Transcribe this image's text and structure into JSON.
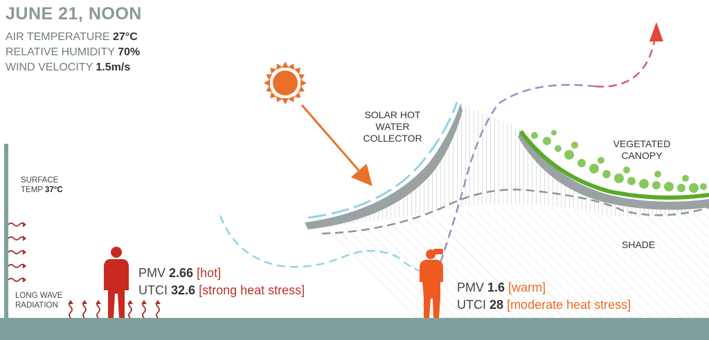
{
  "title": "JUNE 21, NOON",
  "conditions": {
    "air_temp_label": "AIR TEMPERATURE",
    "air_temp_value": "27°C",
    "humidity_label": "RELATIVE HUMIDITY",
    "humidity_value": "70%",
    "wind_label": "WIND VELOCITY",
    "wind_value": "1.5m/s"
  },
  "labels": {
    "solar_collector": [
      "SOLAR HOT",
      "WATER",
      "COLLECTOR"
    ],
    "canopy": [
      "VEGETATED",
      "CANOPY"
    ],
    "shade": "SHADE",
    "surface_temp_label_1": "SURFACE",
    "surface_temp_label_2": "TEMP",
    "surface_temp_value": "37°C",
    "long_wave": [
      "LONG WAVE",
      "RADIATION"
    ]
  },
  "sun_person": {
    "pmv_label": "PMV",
    "pmv_value": "2.66",
    "pmv_tag": "[hot]",
    "utci_label": "UTCI",
    "utci_value": "32.6",
    "utci_tag": "[strong heat stress]"
  },
  "shade_person": {
    "pmv_label": "PMV",
    "pmv_value": "1.6",
    "pmv_tag": "[warm]",
    "utci_label": "UTCI",
    "utci_value": "28",
    "utci_tag": "[moderate heat stress]"
  },
  "colors": {
    "sun": "#e8702a",
    "person_sun": "#c82a20",
    "person_shade": "#ef5a22",
    "ground": "#7fa09c",
    "collector_blue": "#8fd3ea",
    "canopy_green": "#5aaa2a",
    "airflow_purple": "#9a8cc4",
    "airflow_red": "#d95a6a",
    "heat_wave": "#a8322c"
  },
  "icons": [
    "sun-icon",
    "person-standing-icon",
    "person-camera-icon",
    "heat-wave-icon",
    "airflow-arrow-icon"
  ]
}
